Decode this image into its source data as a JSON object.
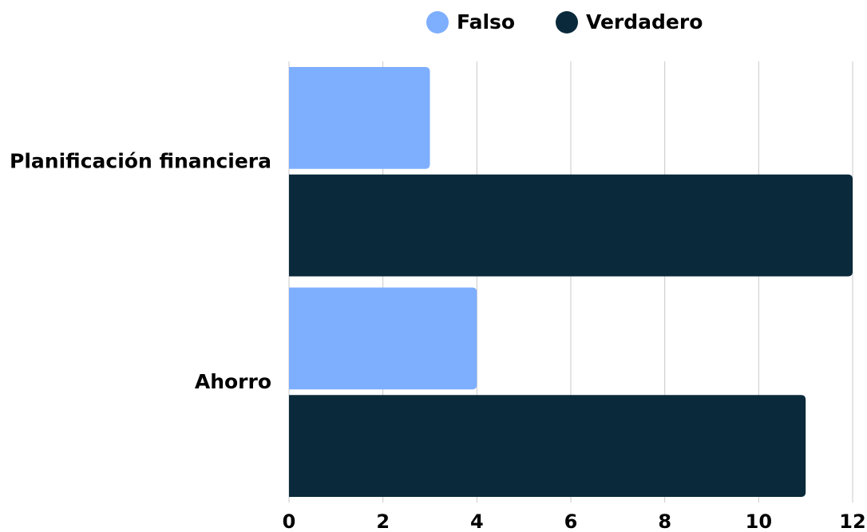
{
  "chart_data": {
    "type": "bar",
    "orientation": "horizontal",
    "categories": [
      "Planificación financiera",
      "Ahorro"
    ],
    "series": [
      {
        "name": "Falso",
        "color": "#7eaefe",
        "values": [
          3,
          4
        ]
      },
      {
        "name": "Verdadero",
        "color": "#0a2a3b",
        "values": [
          12,
          11
        ]
      }
    ],
    "xlim": [
      0,
      12
    ],
    "xticks": [
      0,
      2,
      4,
      6,
      8,
      10,
      12
    ],
    "grid": true,
    "legend": "top"
  }
}
